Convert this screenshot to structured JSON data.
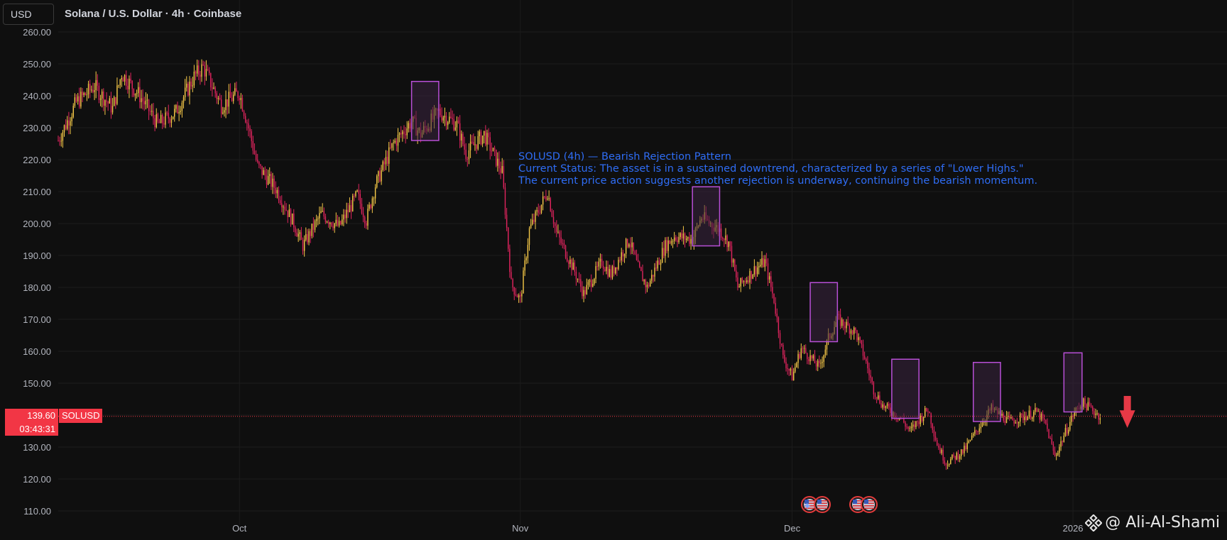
{
  "header": {
    "currency": "USD",
    "title": "Solana / U.S. Dollar · 4h · Coinbase"
  },
  "annotation": {
    "line1": "SOLUSD (4h) — Bearish Rejection Pattern",
    "line2": "Current Status: The asset is in a sustained downtrend, characterized by a series of \"Lower Highs.\"",
    "line3": "The current price action suggests another rejection is underway, continuing the bearish momentum."
  },
  "price_label": {
    "price": "139.60",
    "timer": "03:43:31",
    "symbol": "SOLUSD"
  },
  "watermark": "@ Ali-Al-Shami",
  "colors": {
    "background": "#0f0f0f",
    "grid": "#1c1c1c",
    "axis_text": "#b2b5be",
    "candle_up": "#f7c948",
    "candle_down": "#e0245e",
    "box_fill": "#3a2440",
    "box_stroke": "#b84fd6",
    "last_price": "#f23645",
    "annotation": "#2f6df5",
    "arrow": "#e63946"
  },
  "icons": [
    "binance-logo-icon",
    "us-flag-event-icon",
    "down-arrow-icon"
  ],
  "chart_data": {
    "type": "candlestick",
    "title": "Solana / U.S. Dollar · 4h · Coinbase",
    "xlabel": "",
    "ylabel": "",
    "ylim": [
      108,
      262
    ],
    "y_ticks": [
      "110.00",
      "120.00",
      "130.00",
      "140.00",
      "150.00",
      "160.00",
      "170.00",
      "180.00",
      "190.00",
      "200.00",
      "210.00",
      "220.00",
      "230.00",
      "240.00",
      "250.00",
      "260.00"
    ],
    "x_tick_labels": [
      "Oct",
      "Nov",
      "Dec",
      "2026"
    ],
    "last_price": 139.6,
    "x_start": "2025-09-11",
    "x_end": "2026-01-18",
    "x_ticks": [
      "2025-10-01",
      "2025-11-01",
      "2025-12-01",
      "2026-01-01"
    ],
    "close_path": [
      [
        "2025-09-11",
        226
      ],
      [
        "2025-09-13",
        238
      ],
      [
        "2025-09-15",
        243
      ],
      [
        "2025-09-17",
        236
      ],
      [
        "2025-09-18",
        247
      ],
      [
        "2025-09-20",
        240
      ],
      [
        "2025-09-22",
        231
      ],
      [
        "2025-09-24",
        235
      ],
      [
        "2025-09-26",
        246
      ],
      [
        "2025-09-27",
        249
      ],
      [
        "2025-09-28",
        243
      ],
      [
        "2025-09-29",
        237
      ],
      [
        "2025-10-01",
        241
      ],
      [
        "2025-10-02",
        230
      ],
      [
        "2025-10-03",
        218
      ],
      [
        "2025-10-05",
        211
      ],
      [
        "2025-10-07",
        200
      ],
      [
        "2025-10-08",
        193
      ],
      [
        "2025-10-10",
        203
      ],
      [
        "2025-10-12",
        199
      ],
      [
        "2025-10-14",
        209
      ],
      [
        "2025-10-15",
        201
      ],
      [
        "2025-10-16",
        212
      ],
      [
        "2025-10-18",
        225
      ],
      [
        "2025-10-20",
        232
      ],
      [
        "2025-10-21",
        228
      ],
      [
        "2025-10-23",
        235
      ],
      [
        "2025-10-25",
        231
      ],
      [
        "2025-10-26",
        222
      ],
      [
        "2025-10-28",
        228
      ],
      [
        "2025-10-30",
        216
      ],
      [
        "2025-10-31",
        181
      ],
      [
        "2025-11-01",
        176
      ],
      [
        "2025-11-02",
        198
      ],
      [
        "2025-11-04",
        210
      ],
      [
        "2025-11-05",
        197
      ],
      [
        "2025-11-07",
        185
      ],
      [
        "2025-11-08",
        178
      ],
      [
        "2025-11-10",
        188
      ],
      [
        "2025-11-11",
        184
      ],
      [
        "2025-11-13",
        195
      ],
      [
        "2025-11-14",
        186
      ],
      [
        "2025-11-15",
        180
      ],
      [
        "2025-11-17",
        193
      ],
      [
        "2025-11-18",
        196
      ],
      [
        "2025-11-20",
        195
      ],
      [
        "2025-11-21",
        202
      ],
      [
        "2025-11-23",
        198
      ],
      [
        "2025-11-24",
        194
      ],
      [
        "2025-11-25",
        180
      ],
      [
        "2025-11-27",
        186
      ],
      [
        "2025-11-28",
        188
      ],
      [
        "2025-11-29",
        176
      ],
      [
        "2025-11-30",
        158
      ],
      [
        "2025-12-01",
        152
      ],
      [
        "2025-12-02",
        161
      ],
      [
        "2025-12-04",
        155
      ],
      [
        "2025-12-05",
        164
      ],
      [
        "2025-12-06",
        170
      ],
      [
        "2025-12-08",
        166
      ],
      [
        "2025-12-09",
        158
      ],
      [
        "2025-12-10",
        148
      ],
      [
        "2025-12-11",
        143
      ],
      [
        "2025-12-13",
        139
      ],
      [
        "2025-12-14",
        135
      ],
      [
        "2025-12-16",
        142
      ],
      [
        "2025-12-17",
        131
      ],
      [
        "2025-12-18",
        125
      ],
      [
        "2025-12-20",
        129
      ],
      [
        "2025-12-22",
        138
      ],
      [
        "2025-12-23",
        142
      ],
      [
        "2025-12-25",
        138
      ],
      [
        "2025-12-27",
        140
      ],
      [
        "2025-12-28",
        141
      ],
      [
        "2025-12-29",
        137
      ],
      [
        "2025-12-30",
        127
      ],
      [
        "2026-01-01",
        140
      ],
      [
        "2026-01-02",
        144
      ],
      [
        "2026-01-03",
        142
      ],
      [
        "2026-01-04",
        139.6
      ]
    ],
    "rejection_boxes": [
      {
        "x0": "2025-10-20",
        "x1": "2025-10-23",
        "y0": 226,
        "y1": 244.5
      },
      {
        "x0": "2025-11-20",
        "x1": "2025-11-23",
        "y0": 193,
        "y1": 211.5
      },
      {
        "x0": "2025-12-03",
        "x1": "2025-12-06",
        "y0": 163,
        "y1": 181.5
      },
      {
        "x0": "2025-12-12",
        "x1": "2025-12-15",
        "y0": 139,
        "y1": 157.5
      },
      {
        "x0": "2025-12-21",
        "x1": "2025-12-24",
        "y0": 138,
        "y1": 156.5
      },
      {
        "x0": "2025-12-31",
        "x1": "2026-01-02",
        "y0": 141,
        "y1": 159.5
      }
    ],
    "projection_arrow": {
      "x": "2026-01-07",
      "y_from": 146,
      "y_to": 136
    }
  }
}
